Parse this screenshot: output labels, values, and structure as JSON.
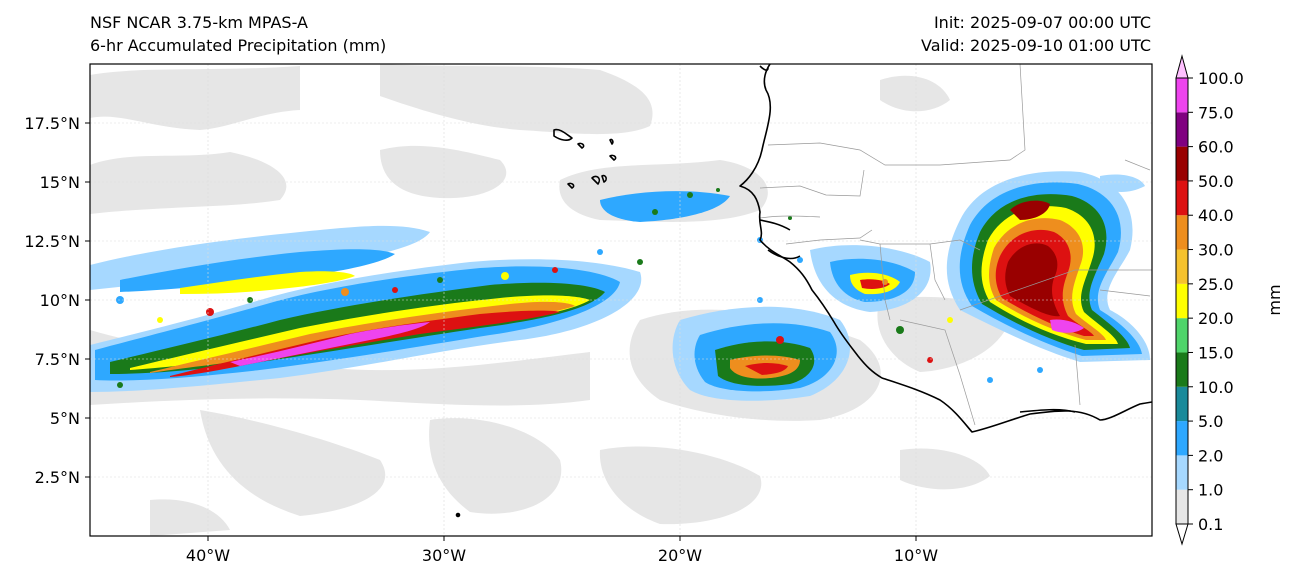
{
  "titles": {
    "left_line1": "NSF NCAR 3.75-km MPAS-A",
    "left_line2": "6-hr Accumulated Precipitation (mm)",
    "right_line1": "Init: 2025-09-07 00:00 UTC",
    "right_line2": "Valid: 2025-09-10 01:00 UTC"
  },
  "map": {
    "lon_range": [
      -45,
      0
    ],
    "lat_range": [
      0,
      20
    ],
    "ocean_color": "#ffffff",
    "coastline_color": "#000000",
    "border_color": "#999999",
    "x_ticks": [
      {
        "lon": -40,
        "label": "40°W"
      },
      {
        "lon": -30,
        "label": "30°W"
      },
      {
        "lon": -20,
        "label": "20°W"
      },
      {
        "lon": -10,
        "label": "10°W"
      }
    ],
    "y_ticks": [
      {
        "lat": 2.5,
        "label": "2.5°N"
      },
      {
        "lat": 5,
        "label": "5°N"
      },
      {
        "lat": 7.5,
        "label": "7.5°N"
      },
      {
        "lat": 10,
        "label": "10°N"
      },
      {
        "lat": 12.5,
        "label": "12.5°N"
      },
      {
        "lat": 15,
        "label": "15°N"
      },
      {
        "lat": 17.5,
        "label": "17.5°N"
      }
    ]
  },
  "colorbar": {
    "label": "mm",
    "levels": [
      {
        "value": "0.1",
        "color": "#e6e6e6"
      },
      {
        "value": "1.0",
        "color": "#a6d8ff"
      },
      {
        "value": "2.0",
        "color": "#2ea8ff"
      },
      {
        "value": "5.0",
        "color": "#1a8a9a"
      },
      {
        "value": "10.0",
        "color": "#1a7a1a"
      },
      {
        "value": "15.0",
        "color": "#4fd46a"
      },
      {
        "value": "20.0",
        "color": "#ffff00"
      },
      {
        "value": "25.0",
        "color": "#f5c22e"
      },
      {
        "value": "30.0",
        "color": "#ee8e1e"
      },
      {
        "value": "40.0",
        "color": "#dd1111"
      },
      {
        "value": "50.0",
        "color": "#990000"
      },
      {
        "value": "60.0",
        "color": "#800080"
      },
      {
        "value": "75.0",
        "color": "#ee44ee"
      },
      {
        "value": "100.0",
        "color": ""
      }
    ],
    "extend_low_color": "#ffffff",
    "extend_high_color": "#ffc0ff"
  }
}
